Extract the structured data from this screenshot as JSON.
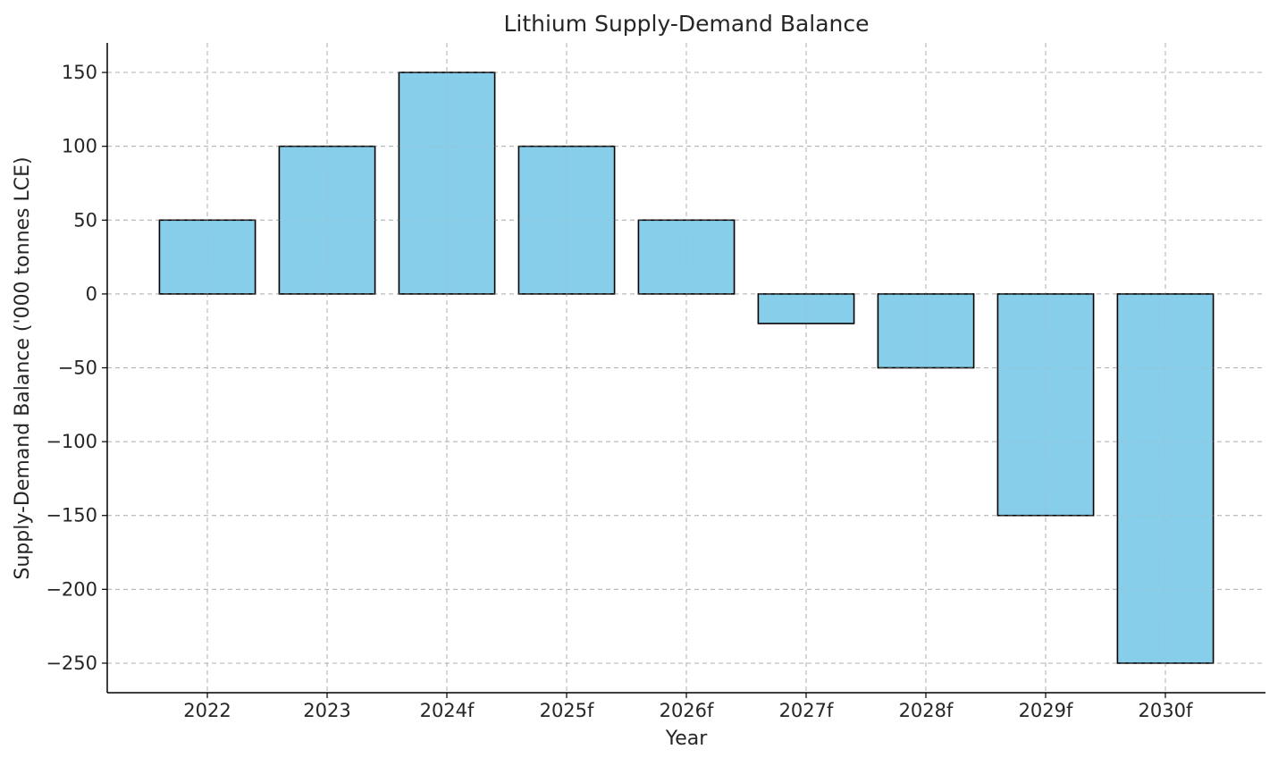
{
  "chart_data": {
    "type": "bar",
    "title": "Lithium Supply-Demand Balance",
    "xlabel": "Year",
    "ylabel": "Supply-Demand Balance ('000 tonnes LCE)",
    "categories": [
      "2022",
      "2023",
      "2024f",
      "2025f",
      "2026f",
      "2027f",
      "2028f",
      "2029f",
      "2030f"
    ],
    "values": [
      50,
      100,
      150,
      100,
      50,
      -20,
      -50,
      -150,
      -250
    ],
    "ylim": [
      -270,
      170
    ],
    "yticks": [
      150,
      100,
      50,
      0,
      -50,
      -100,
      -150,
      -200,
      -250
    ],
    "ytick_labels": [
      "150",
      "100",
      "50",
      "0",
      "−50",
      "−100",
      "−150",
      "−200",
      "−250"
    ],
    "grid": true,
    "bar_color": "#87CEEB",
    "edge_color": "#000000"
  }
}
